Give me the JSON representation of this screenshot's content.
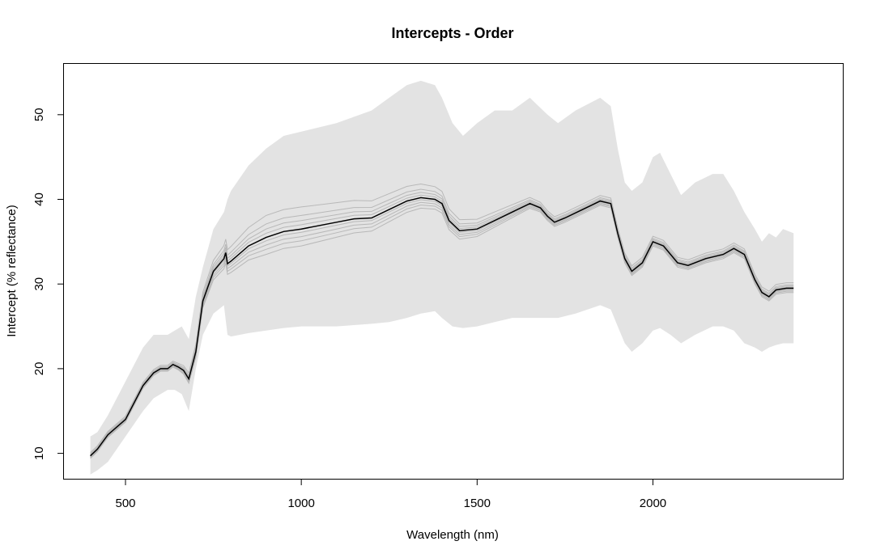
{
  "chart_data": {
    "type": "line",
    "title": "Intercepts - Order",
    "xlabel": "Wavelength (nm)",
    "ylabel": "Intercept (% reflectance)",
    "xlim": [
      325,
      2540
    ],
    "ylim": [
      7,
      56
    ],
    "xticks": [
      500,
      1000,
      1500,
      2000
    ],
    "yticks": [
      10,
      20,
      30,
      40,
      50
    ],
    "grid": false,
    "colors": {
      "band": "#e3e3e3",
      "ensemble": "#b8b8b8",
      "mean": "#000000"
    },
    "band": {
      "x": [
        400,
        420,
        450,
        500,
        550,
        580,
        600,
        620,
        640,
        660,
        680,
        700,
        720,
        750,
        780,
        790,
        800,
        850,
        900,
        950,
        1000,
        1100,
        1200,
        1250,
        1300,
        1340,
        1380,
        1400,
        1430,
        1460,
        1500,
        1550,
        1600,
        1650,
        1700,
        1730,
        1780,
        1850,
        1880,
        1900,
        1920,
        1940,
        1970,
        2000,
        2020,
        2050,
        2080,
        2120,
        2170,
        2200,
        2230,
        2260,
        2290,
        2310,
        2330,
        2350,
        2370,
        2400
      ],
      "upper": [
        12.0,
        12.5,
        14.5,
        18.5,
        22.5,
        24.0,
        24.0,
        24.0,
        24.5,
        25.0,
        23.5,
        28.5,
        32.0,
        36.5,
        38.5,
        40.0,
        41.0,
        44.0,
        46.0,
        47.5,
        48.0,
        49.0,
        50.5,
        52.0,
        53.5,
        54.0,
        53.5,
        52.0,
        49.0,
        47.5,
        49.0,
        50.5,
        50.5,
        52.0,
        50.0,
        49.0,
        50.5,
        52.0,
        51.0,
        46.0,
        42.0,
        41.0,
        42.0,
        45.0,
        45.5,
        43.0,
        40.5,
        42.0,
        43.0,
        43.0,
        41.0,
        38.5,
        36.5,
        35.0,
        36.0,
        35.5,
        36.5,
        36.0
      ],
      "lower": [
        7.5,
        8.0,
        9.0,
        12.0,
        15.0,
        16.5,
        17.0,
        17.5,
        17.5,
        17.0,
        15.0,
        20.0,
        24.0,
        26.5,
        27.5,
        24.0,
        23.8,
        24.2,
        24.5,
        24.8,
        25.0,
        25.0,
        25.3,
        25.5,
        26.0,
        26.5,
        26.8,
        26.0,
        25.0,
        24.8,
        25.0,
        25.5,
        26.0,
        26.0,
        26.0,
        26.0,
        26.5,
        27.5,
        27.0,
        25.0,
        23.0,
        22.0,
        23.0,
        24.5,
        24.8,
        24.0,
        23.0,
        24.0,
        25.0,
        25.0,
        24.5,
        23.0,
        22.5,
        22.0,
        22.5,
        22.8,
        23.0,
        23.0
      ]
    },
    "series": [
      {
        "x": [
          400,
          420,
          450,
          500,
          550,
          580,
          600,
          620,
          635,
          650,
          665,
          680,
          700,
          720,
          750,
          780,
          785,
          790,
          800,
          850,
          900,
          950,
          1000,
          1100,
          1150,
          1200,
          1250,
          1300,
          1340,
          1380,
          1400,
          1420,
          1450,
          1500,
          1550,
          1600,
          1650,
          1680,
          1700,
          1720,
          1750,
          1800,
          1850,
          1880,
          1900,
          1920,
          1940,
          1970,
          2000,
          2030,
          2070,
          2100,
          2150,
          2200,
          2230,
          2260,
          2290,
          2310,
          2330,
          2350,
          2380,
          2400
        ],
        "values": [
          9.7,
          10.5,
          12.2,
          14.0,
          18.0,
          19.5,
          20.0,
          20.0,
          20.5,
          20.2,
          19.8,
          18.8,
          22.0,
          28.0,
          31.5,
          33.0,
          33.7,
          32.4,
          32.7,
          34.5,
          35.5,
          36.2,
          36.5,
          37.3,
          37.7,
          37.8,
          38.8,
          39.8,
          40.2,
          40.0,
          39.5,
          37.5,
          36.3,
          36.5,
          37.5,
          38.5,
          39.5,
          39.0,
          38.0,
          37.3,
          37.8,
          38.8,
          39.8,
          39.5,
          36.0,
          33.0,
          31.5,
          32.5,
          35.0,
          34.5,
          32.5,
          32.2,
          33.0,
          33.5,
          34.2,
          33.5,
          30.5,
          29.0,
          28.5,
          29.3,
          29.5,
          29.5
        ]
      }
    ]
  }
}
